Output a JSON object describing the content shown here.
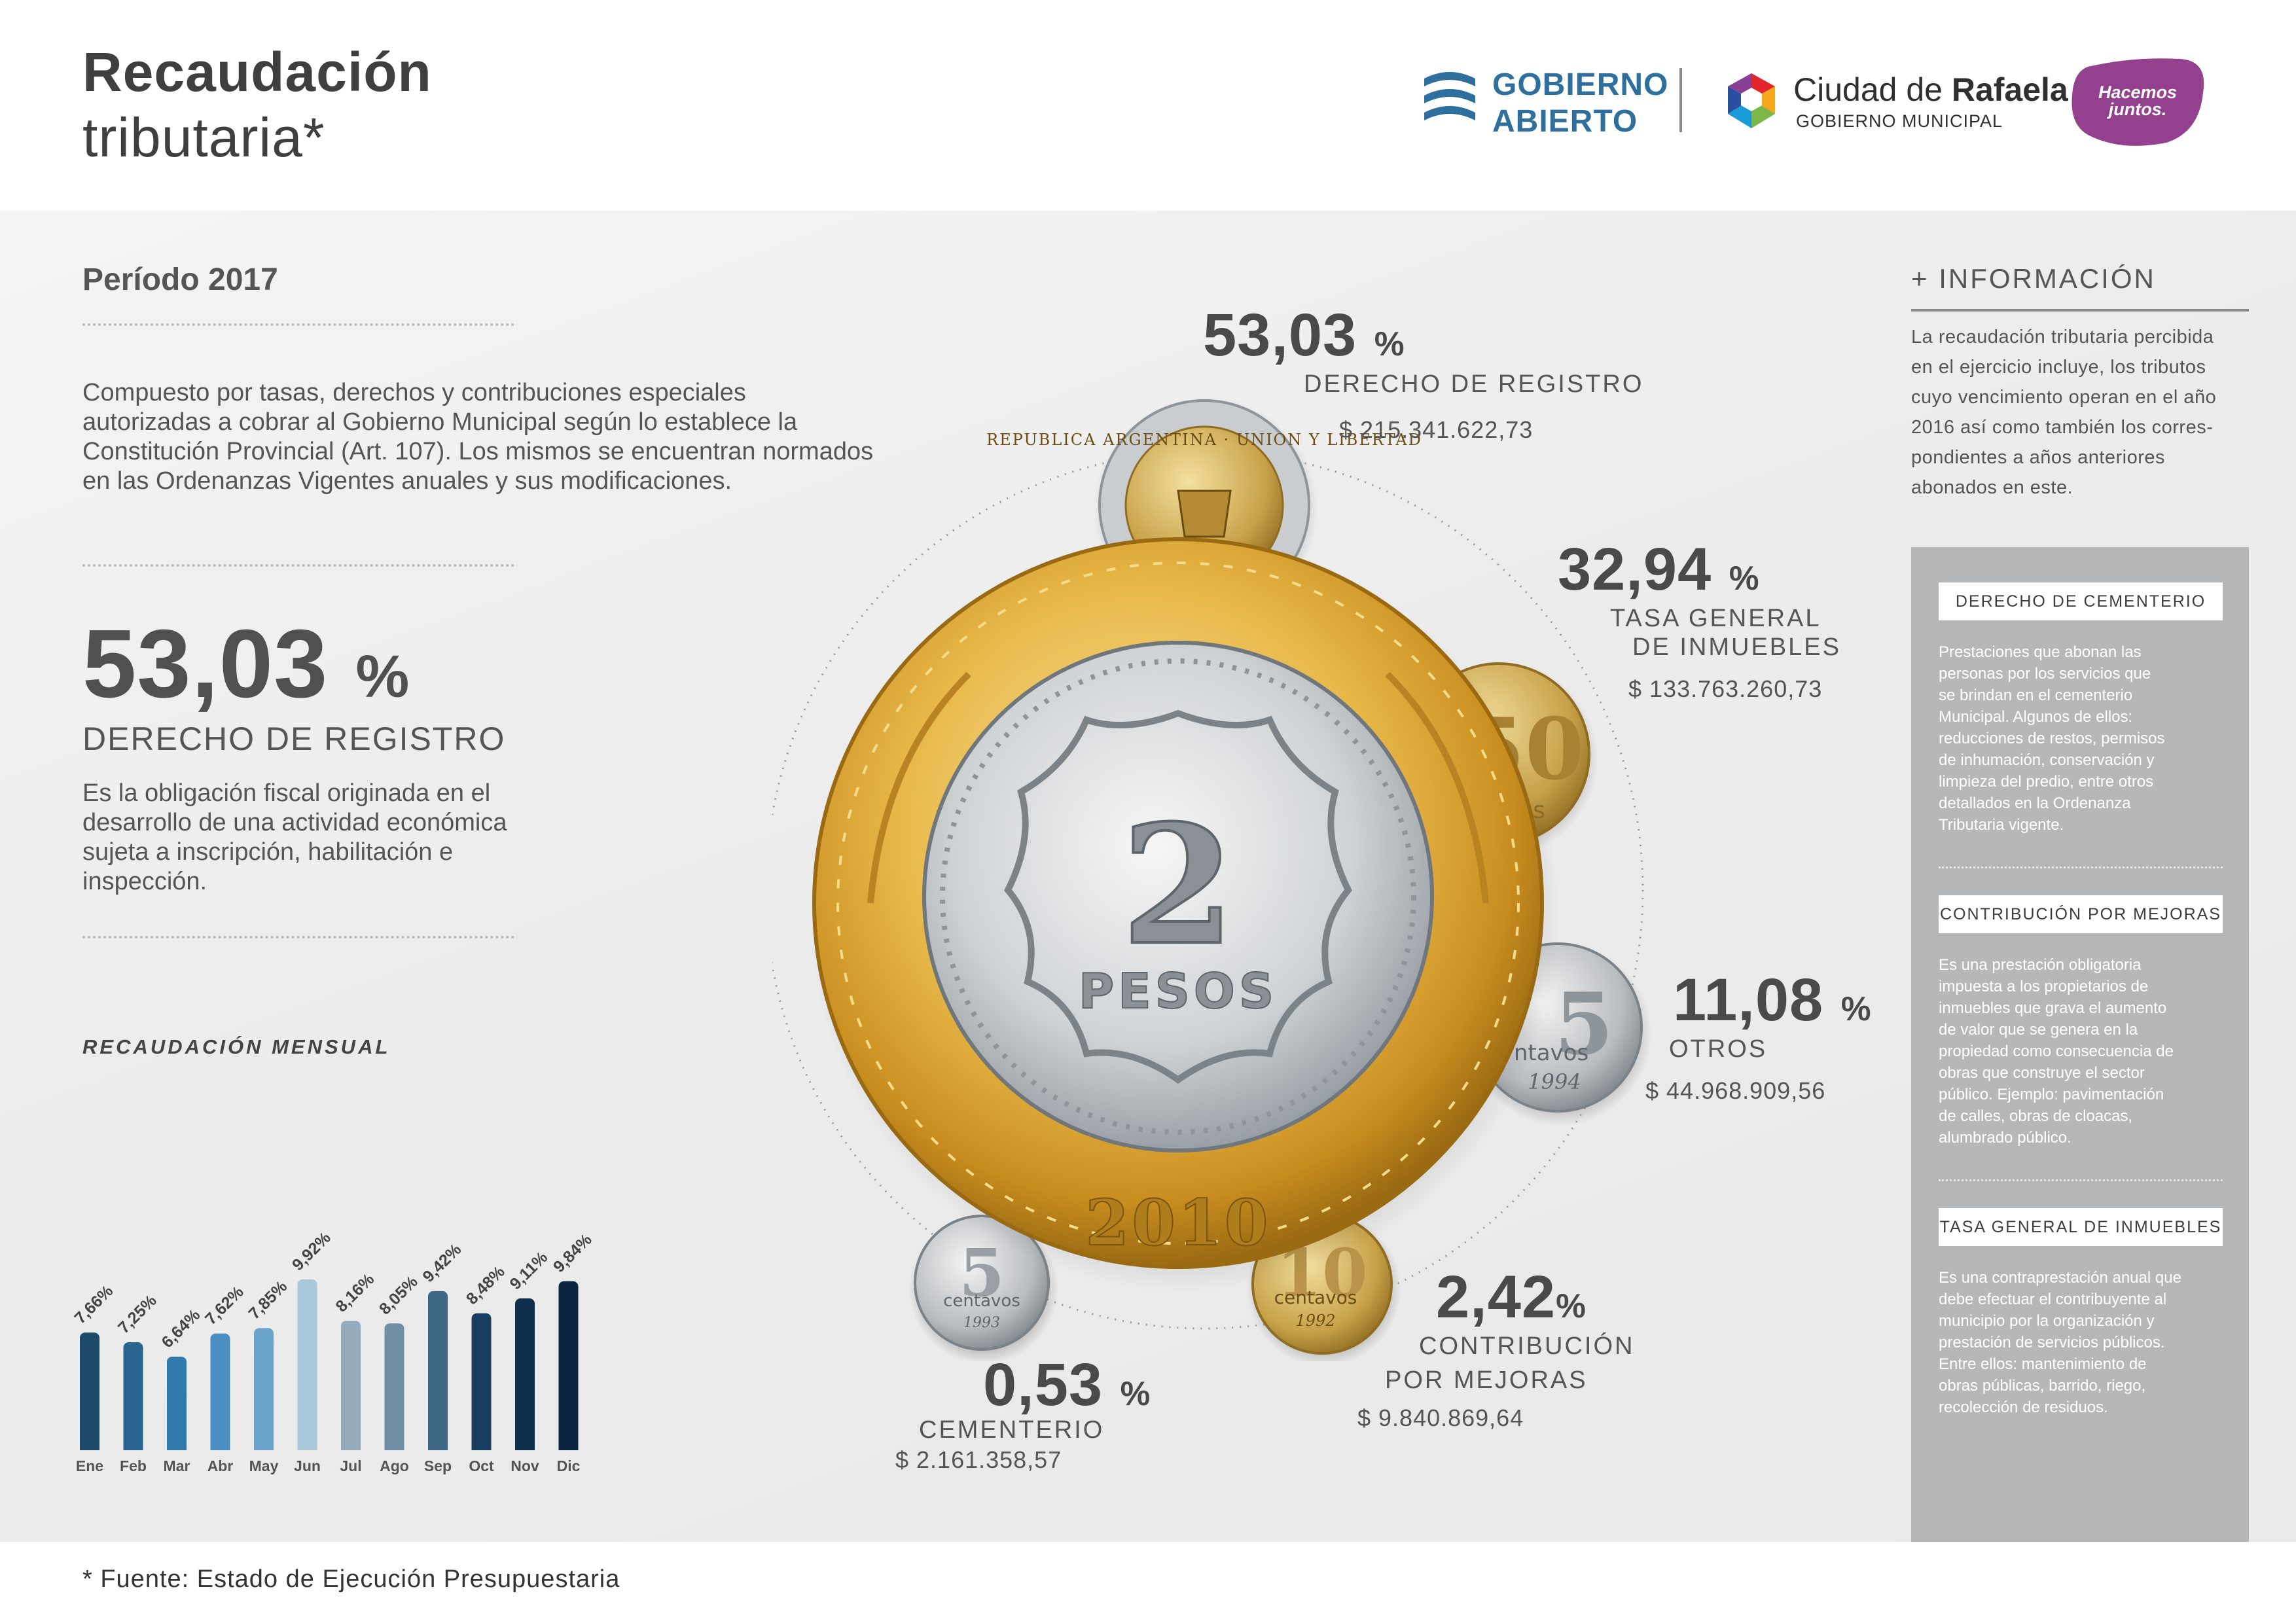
{
  "header": {
    "title_line1": "Recaudación",
    "title_line2": "tributaria*",
    "logo_gobierno_abierto_line1": "GOBIERNO",
    "logo_gobierno_abierto_line2": "ABIERTO",
    "logo_ciudad_prefix": "Ciudad de ",
    "logo_ciudad_name": "Rafaela",
    "logo_ciudad_sub": "GOBIERNO MUNICIPAL",
    "logo_hacemos_line1": "Hacemos",
    "logo_hacemos_line2": "juntos.",
    "colors": {
      "gobierno_abierto": "#2e6f9e",
      "hacemos_juntos": "#93418f"
    }
  },
  "left": {
    "periodo": "Período 2017",
    "intro": "Compuesto por tasas, derechos y contribuciones especiales autorizadas a cobrar al Gobierno Municipal según lo establece la Constitución Provincial (Art. 107). Los mismos se encuentran normados en las Ordenanzas Vigentes anuales y sus modificaciones.",
    "highlight_value": "53,03",
    "highlight_unit": "%",
    "highlight_label": "DERECHO DE REGISTRO",
    "highlight_desc": "Es la obligación fiscal originada en el desarrollo de una actividad económica sujeta a inscripción, habilitación e inspección.",
    "monthly_title": "RECAUDACIÓN MENSUAL"
  },
  "chart_data": {
    "type": "bar",
    "title": "RECAUDACIÓN MENSUAL",
    "categories": [
      "Ene",
      "Feb",
      "Mar",
      "Abr",
      "May",
      "Jun",
      "Jul",
      "Ago",
      "Sep",
      "Oct",
      "Nov",
      "Dic"
    ],
    "values": [
      7.66,
      7.25,
      6.64,
      7.62,
      7.85,
      9.92,
      8.16,
      8.05,
      9.42,
      8.48,
      9.11,
      9.84
    ],
    "labels": [
      "7,66%",
      "7,25%",
      "6,64%",
      "7,62%",
      "7,85%",
      "9,92%",
      "8,16%",
      "8,05%",
      "9,42%",
      "8,48%",
      "9,11%",
      "9,84%"
    ],
    "colors": [
      "#1d4a6b",
      "#2a6491",
      "#2f79ad",
      "#4a8fbf",
      "#6aa4cb",
      "#a9c8dc",
      "#94abbd",
      "#6f8ea3",
      "#3e6884",
      "#183d5f",
      "#0f2f4d",
      "#0b2540"
    ],
    "xlabel": "",
    "ylabel": "",
    "grid": false
  },
  "breakdown": [
    {
      "value": "53,03",
      "unit": "%",
      "label": [
        "DERECHO DE REGISTRO"
      ],
      "amount": "$ 215.341.622,73"
    },
    {
      "value": "32,94",
      "unit": "%",
      "label": [
        "TASA GENERAL",
        "DE INMUEBLES"
      ],
      "amount": "$ 133.763.260,73"
    },
    {
      "value": "11,08",
      "unit": "%",
      "label": [
        "OTROS"
      ],
      "amount": "$ 44.968.909,56"
    },
    {
      "value": "2,42",
      "unit": "%",
      "label": [
        "CONTRIBUCIÓN",
        "POR MEJORAS"
      ],
      "amount": "$ 9.840.869,64"
    },
    {
      "value": "0,53",
      "unit": "%",
      "label": [
        "CEMENTERIO"
      ],
      "amount": "$ 2.161.358,57"
    }
  ],
  "coins": {
    "main_value": "2",
    "main_unit": "PESOS",
    "main_year": "2010",
    "peso_rim_text": "REPUBLICA ARGENTINA · UNION Y LIBERTAD",
    "c50_value": "50",
    "c50_unit": "vos",
    "c5_value": "5",
    "c5_unit": "ntavos",
    "c5_year": "1994",
    "c10_value": "10",
    "c10_unit": "centavos",
    "c10_year": "1992",
    "c5b_value": "5",
    "c5b_unit": "centavos",
    "c5b_year": "1993"
  },
  "info": {
    "title": "+ INFORMACIÓN",
    "text_lines": [
      "La recaudación tributaria percibida",
      "en  el ejercicio incluye, los tributos",
      "cuyo vencimiento operan en el año",
      "2016 así como también los corres-",
      "pondientes a años anteriores",
      "abonados en este."
    ],
    "definitions": [
      {
        "title": "DERECHO DE CEMENTERIO",
        "lines": [
          "Prestaciones que abonan las",
          "personas por los servicios que",
          "se brindan en el cementerio",
          "Municipal. Algunos de ellos:",
          "reducciones de restos, permisos",
          "de inhumación, conservación y",
          "limpieza del predio,  entre otros",
          "detallados en la Ordenanza",
          "Tributaria vigente."
        ]
      },
      {
        "title": "CONTRIBUCIÓN POR MEJORAS",
        "lines": [
          "Es una prestación obligatoria",
          "impuesta a los propietarios de",
          "inmuebles que grava el aumento",
          "de valor que se genera en la",
          "propiedad como consecuencia de",
          "obras que construye el sector",
          "público. Ejemplo: pavimentación",
          "de calles, obras de cloacas,",
          "alumbrado público."
        ]
      },
      {
        "title": "TASA GENERAL DE INMUEBLES",
        "lines": [
          "Es una contraprestación anual que",
          "debe efectuar el contribuyente al",
          "municipio por la organización y",
          "prestación de servicios públicos.",
          "Entre ellos: mantenimiento de",
          "obras públicas, barrido, riego,",
          "recolección de residuos."
        ]
      }
    ]
  },
  "footer": {
    "note": "* Fuente: Estado de Ejecución Presupuestaria"
  }
}
